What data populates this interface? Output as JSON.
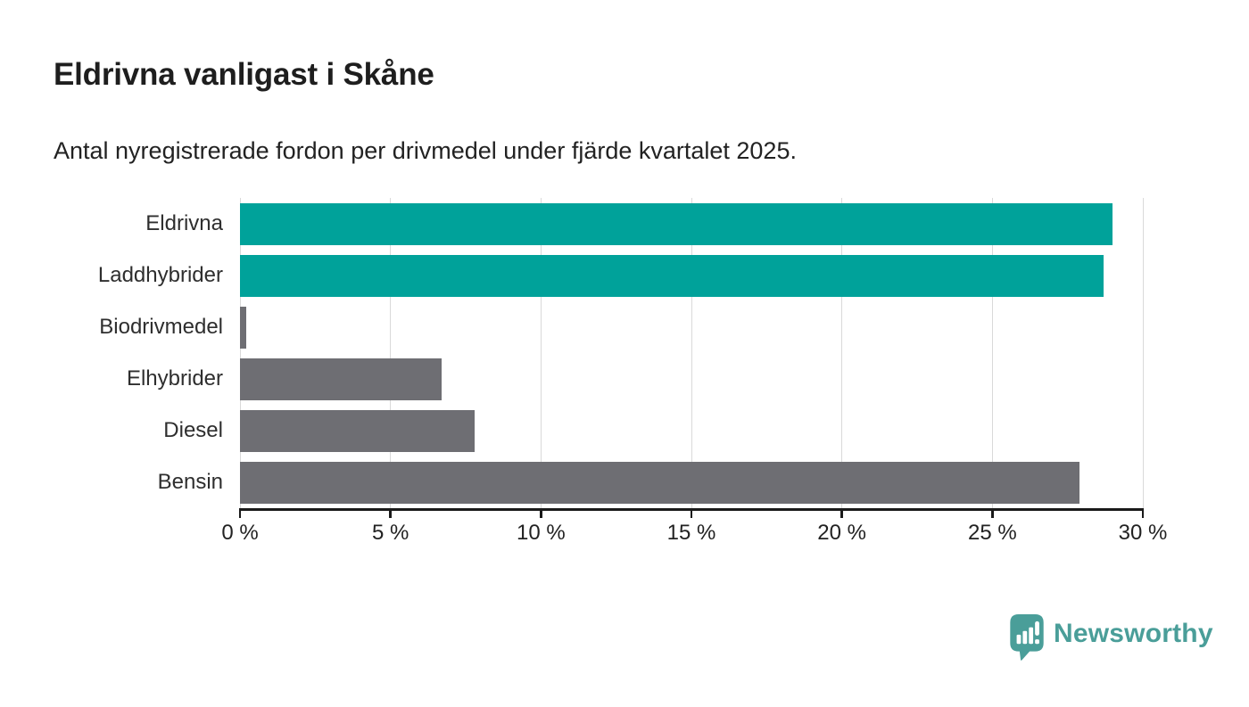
{
  "chart_data": {
    "type": "bar",
    "orientation": "horizontal",
    "title": "Eldrivna vanligast i Skåne",
    "subtitle": "Antal nyregistrerade fordon per drivmedel under fjärde kvartalet 2025.",
    "categories": [
      "Eldrivna",
      "Laddhybrider",
      "Biodrivmedel",
      "Elhybrider",
      "Diesel",
      "Bensin"
    ],
    "values": [
      29.0,
      28.7,
      0.2,
      6.7,
      7.8,
      27.9
    ],
    "bar_colors": [
      "#00a29a",
      "#00a29a",
      "#6e6e73",
      "#6e6e73",
      "#6e6e73",
      "#6e6e73"
    ],
    "xlabel": "",
    "ylabel": "",
    "xlim": [
      0,
      30
    ],
    "x_ticks": [
      0,
      5,
      10,
      15,
      20,
      25,
      30
    ],
    "x_tick_labels": [
      "0 %",
      "5 %",
      "10 %",
      "15 %",
      "20 %",
      "25 %",
      "30 %"
    ],
    "grid": "vertical-light",
    "legend": "none",
    "unit": "%"
  },
  "colors": {
    "accent_teal": "#00a29a",
    "neutral_gray": "#6e6e73",
    "axis": "#1a1a1a",
    "gridline": "#d9d9d9",
    "text": "#1e1e1e",
    "brand": "#4a9e99"
  },
  "footer": {
    "brand": "Newsworthy"
  }
}
